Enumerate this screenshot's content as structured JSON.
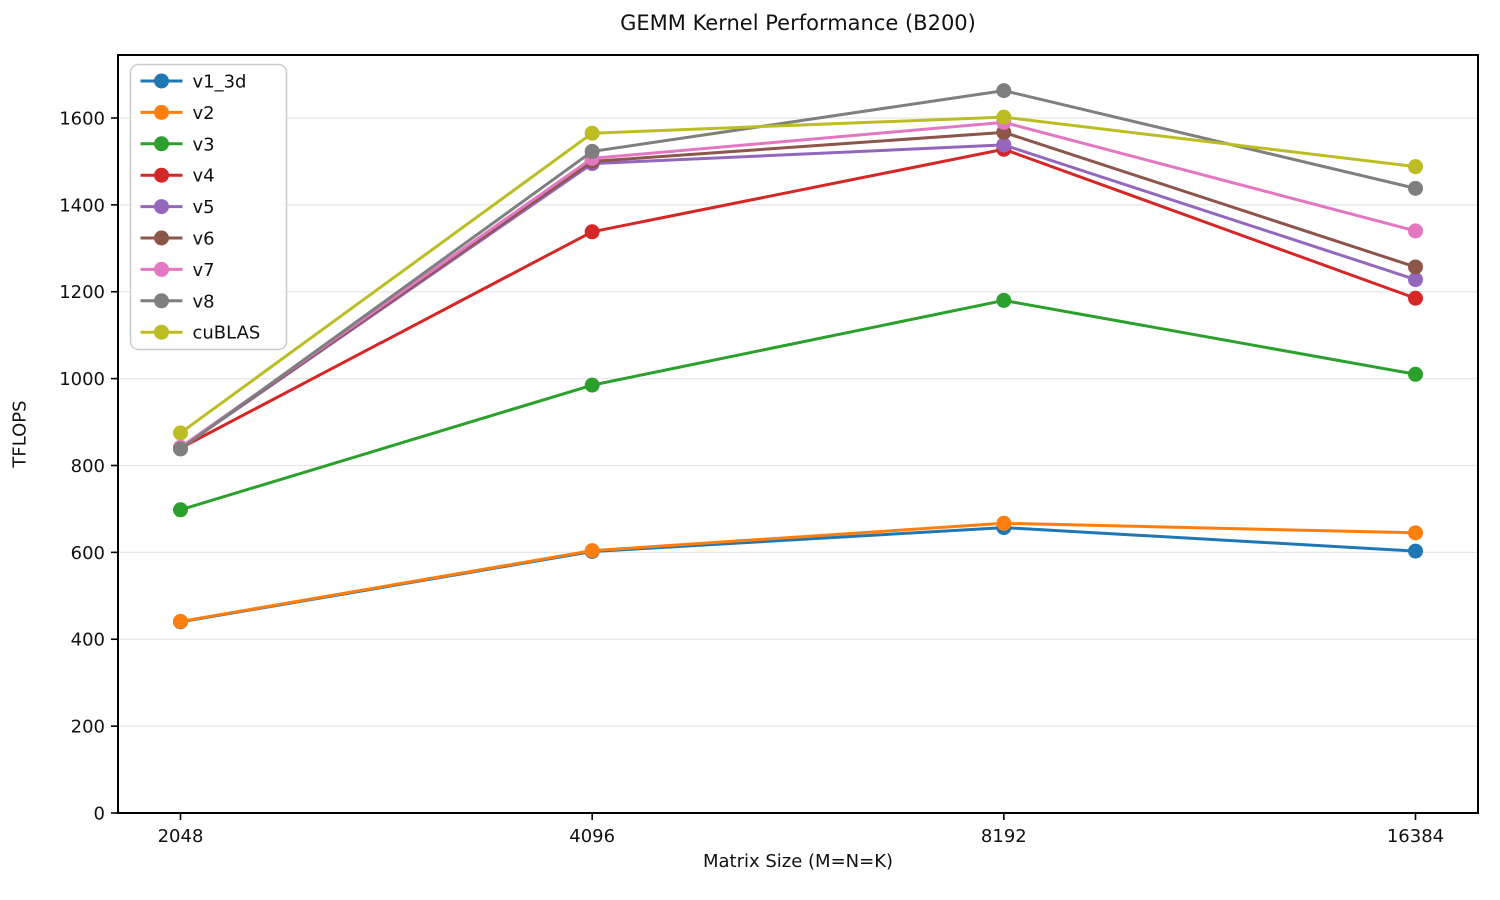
{
  "chart_data": {
    "type": "line",
    "title": "GEMM Kernel Performance (B200)",
    "xlabel": "Matrix Size (M=N=K)",
    "ylabel": "TFLOPS",
    "categories": [
      "2048",
      "4096",
      "8192",
      "16384"
    ],
    "yticks": [
      0,
      200,
      400,
      600,
      800,
      1000,
      1200,
      1400,
      1600
    ],
    "ylim": [
      0,
      1745
    ],
    "grid": "horizontal",
    "gridline_color": "#e6e6e6",
    "axis_color": "#000000",
    "legend_position": "upper-left",
    "series": [
      {
        "name": "v1_3d",
        "color": "#1f77b4",
        "values": [
          440,
          602,
          657,
          603
        ]
      },
      {
        "name": "v2",
        "color": "#ff7f0e",
        "values": [
          441,
          604,
          667,
          645
        ]
      },
      {
        "name": "v3",
        "color": "#2ca02c",
        "values": [
          698,
          985,
          1180,
          1010
        ]
      },
      {
        "name": "v4",
        "color": "#d62728",
        "values": [
          840,
          1338,
          1528,
          1185
        ]
      },
      {
        "name": "v5",
        "color": "#9467bd",
        "values": [
          840,
          1495,
          1538,
          1228
        ]
      },
      {
        "name": "v6",
        "color": "#8c564b",
        "values": [
          841,
          1500,
          1567,
          1257
        ]
      },
      {
        "name": "v7",
        "color": "#e377c2",
        "values": [
          842,
          1507,
          1590,
          1340
        ]
      },
      {
        "name": "v8",
        "color": "#7f7f7f",
        "values": [
          838,
          1523,
          1663,
          1438
        ]
      },
      {
        "name": "cuBLAS",
        "color": "#bcbd22",
        "values": [
          875,
          1565,
          1602,
          1488
        ]
      }
    ]
  }
}
